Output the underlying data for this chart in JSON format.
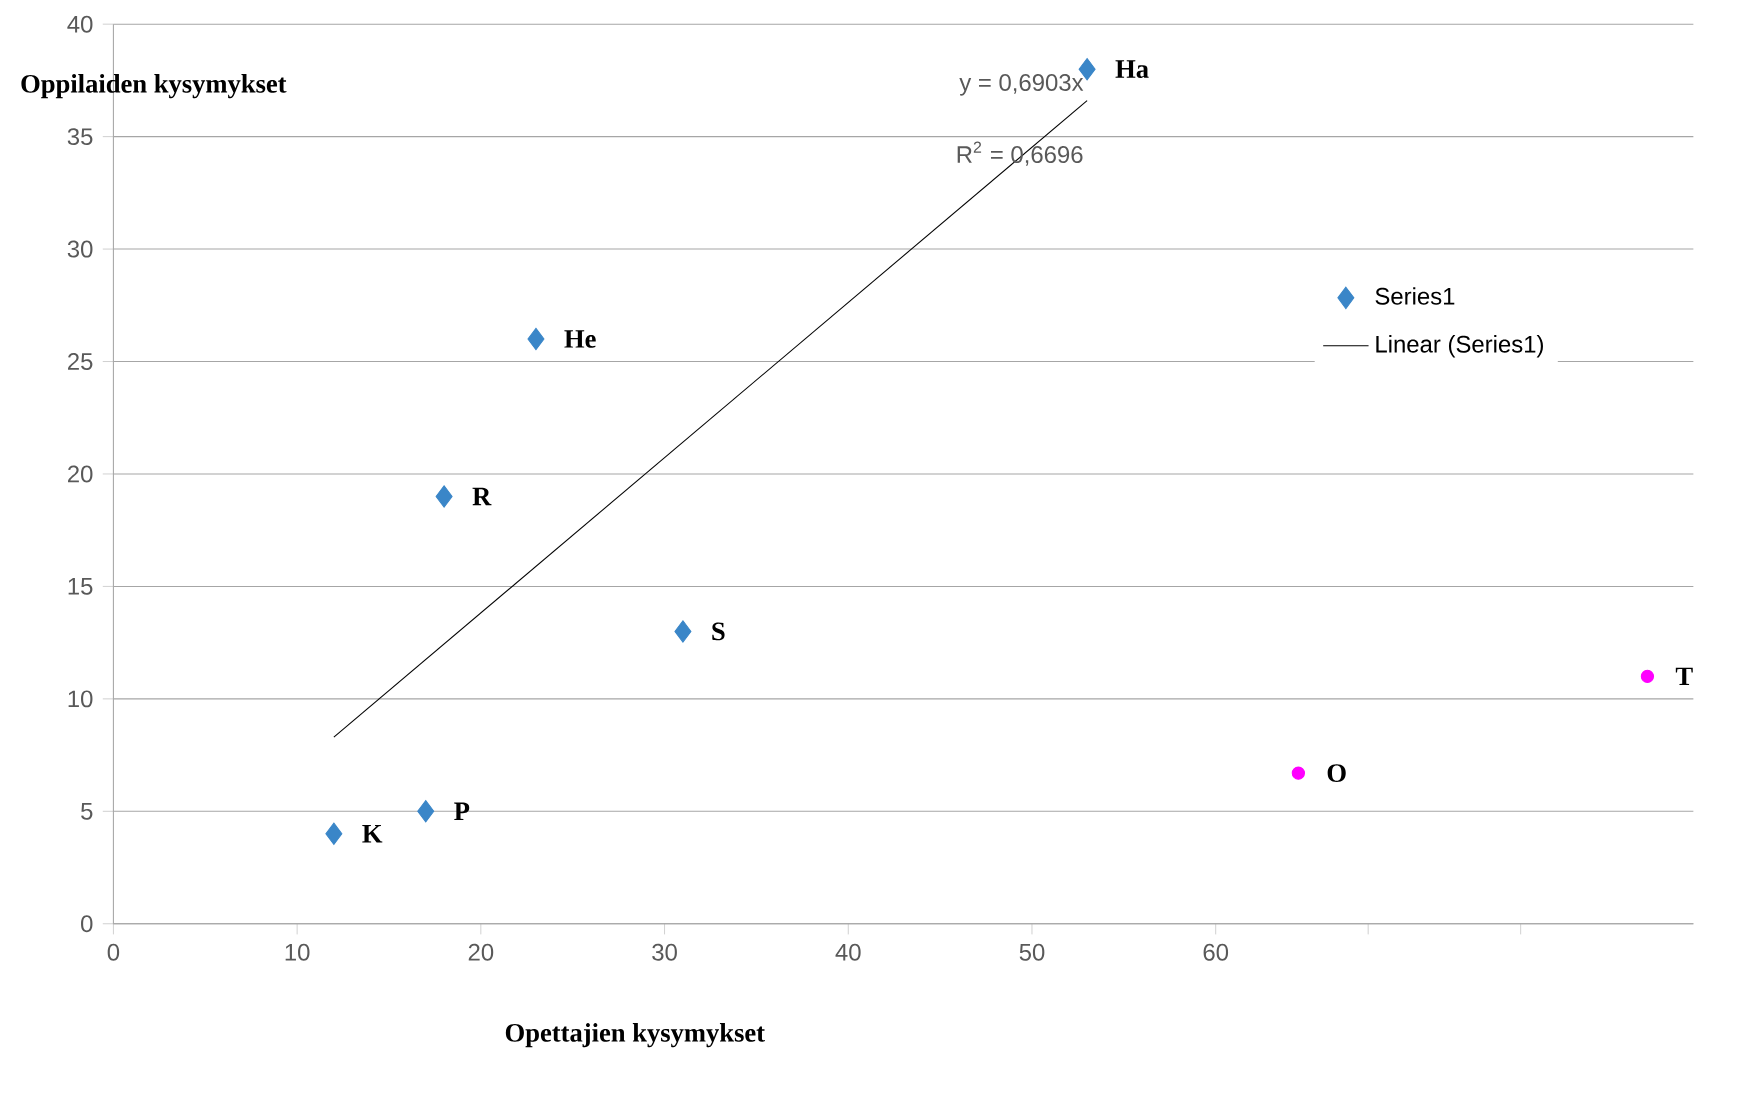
{
  "chart_data": {
    "type": "scatter",
    "xlabel": "Opettajien kysymykset",
    "ylabel": "Oppilaiden kysymykset",
    "xlim": [
      0,
      86
    ],
    "ylim": [
      0,
      40
    ],
    "xticks": [
      0,
      10,
      20,
      30,
      40,
      50,
      60,
      {
        "value": 68.3,
        "label": null
      },
      {
        "value": 76.6,
        "label": null
      }
    ],
    "yticks": [
      0,
      5,
      10,
      15,
      20,
      25,
      30,
      35,
      40
    ],
    "grid": "y",
    "legend": "right",
    "series": [
      {
        "name": "Series1",
        "color": "#3a86c8",
        "marker": "diamond",
        "x": [
          12,
          17,
          18,
          23,
          31,
          53
        ],
        "values": [
          4,
          5,
          19,
          26,
          13,
          38
        ]
      },
      {
        "color": "#ff00ff",
        "marker": "circle",
        "x": [
          64.5,
          83.5
        ],
        "values": [
          6.7,
          11
        ]
      },
      {
        "name": "Linear (Series1)",
        "type": "line",
        "color": "#000000",
        "marker": "none",
        "x": [
          12,
          53
        ],
        "values": [
          8.3,
          36.6
        ]
      }
    ],
    "annotations": [
      {
        "text": "K",
        "x": 12,
        "y": 4
      },
      {
        "text": "P",
        "x": 17,
        "y": 5
      },
      {
        "text": "R",
        "x": 18,
        "y": 19
      },
      {
        "text": "He",
        "x": 23,
        "y": 26
      },
      {
        "text": "S",
        "x": 31,
        "y": 13
      },
      {
        "text": "Ha",
        "x": 53,
        "y": 38
      },
      {
        "text": "O",
        "x": 64.5,
        "y": 6.7
      },
      {
        "text": "T",
        "x": 83.5,
        "y": 11
      },
      "y = 0,6903x",
      "R$^{2}$ = 0,6696"
    ]
  }
}
